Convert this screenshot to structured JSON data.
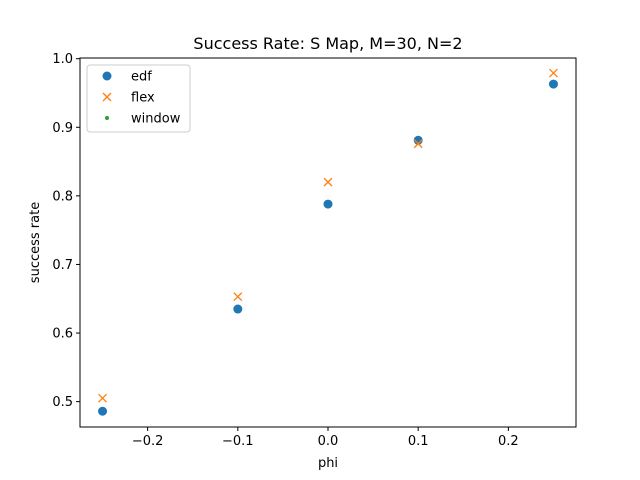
{
  "chart_data": {
    "type": "scatter",
    "title": "Success Rate: S Map, M=30, N=2",
    "xlabel": "phi",
    "ylabel": "success rate",
    "xlim": [
      -0.275,
      0.275
    ],
    "ylim": [
      0.463,
      1.001
    ],
    "xticks": [
      -0.2,
      -0.1,
      0.0,
      0.1,
      0.2
    ],
    "xtick_labels": [
      "−0.2",
      "−0.1",
      "0.0",
      "0.1",
      "0.2"
    ],
    "yticks": [
      0.5,
      0.6,
      0.7,
      0.8,
      0.9,
      1.0
    ],
    "ytick_labels": [
      "0.5",
      "0.6",
      "0.7",
      "0.8",
      "0.9",
      "1.0"
    ],
    "grid": false,
    "legend_position": "top-left",
    "series": [
      {
        "name": "edf",
        "marker": "circle",
        "color": "#1f77b4",
        "points": [
          {
            "x": -0.25,
            "y": 0.486
          },
          {
            "x": -0.1,
            "y": 0.635
          },
          {
            "x": 0.0,
            "y": 0.788
          },
          {
            "x": 0.1,
            "y": 0.881
          },
          {
            "x": 0.25,
            "y": 0.963
          }
        ]
      },
      {
        "name": "flex",
        "marker": "x",
        "color": "#ff7f0e",
        "points": [
          {
            "x": -0.25,
            "y": 0.505
          },
          {
            "x": -0.1,
            "y": 0.653
          },
          {
            "x": 0.0,
            "y": 0.82
          },
          {
            "x": 0.1,
            "y": 0.876
          },
          {
            "x": 0.25,
            "y": 0.979
          }
        ]
      },
      {
        "name": "window",
        "marker": "point",
        "color": "#2ca02c",
        "points": []
      }
    ]
  }
}
